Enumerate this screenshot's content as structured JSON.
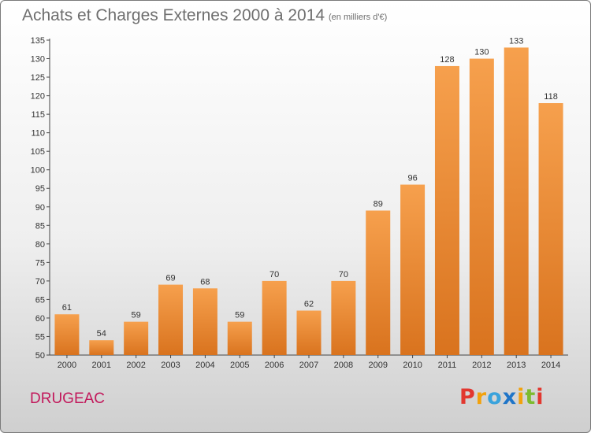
{
  "header": {
    "title": "Achats et Charges Externes 2000 à 2014",
    "unit": "(en milliers d'€)"
  },
  "footer": {
    "commune": "DRUGEAC",
    "logo": "Proxiti"
  },
  "colors": {
    "bar_light": "#f6a04d",
    "bar_dark": "#d9731e",
    "commune_text": "#c2185b",
    "logo_letters": [
      "#e2372f",
      "#f2a20d",
      "#3aa3dc",
      "#1f75c8",
      "#f2a20d",
      "#7dbb2f",
      "#e2372f"
    ]
  },
  "chart_data": {
    "type": "bar",
    "title": "Achats et Charges Externes 2000 à 2014",
    "subtitle": "(en milliers d'€)",
    "categories": [
      "2000",
      "2001",
      "2002",
      "2003",
      "2004",
      "2005",
      "2006",
      "2007",
      "2008",
      "2009",
      "2010",
      "2011",
      "2012",
      "2013",
      "2014"
    ],
    "values": [
      61,
      54,
      59,
      69,
      68,
      59,
      70,
      62,
      70,
      89,
      96,
      128,
      130,
      133,
      118
    ],
    "ylim": [
      50,
      135
    ],
    "yticks": [
      50,
      55,
      60,
      65,
      70,
      75,
      80,
      85,
      90,
      95,
      100,
      105,
      110,
      115,
      120,
      125,
      130,
      135
    ],
    "grid": false,
    "legend": "none"
  }
}
